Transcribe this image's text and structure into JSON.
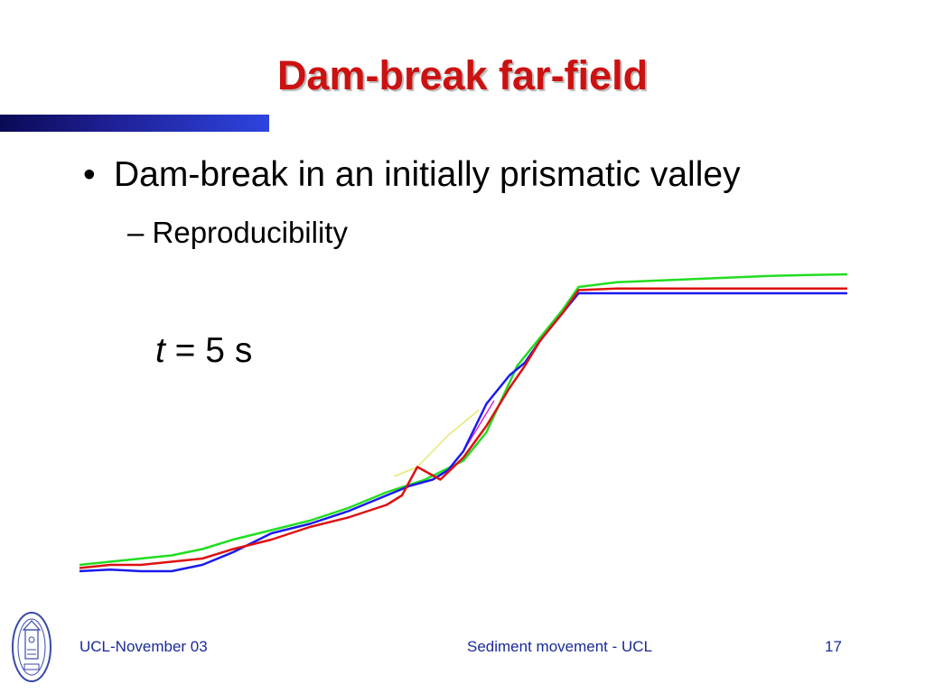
{
  "slide": {
    "title": "Dam-break far-field",
    "bullet_1": "Dam-break in an initially prismatic valley",
    "bullet_1_marker": "•",
    "bullet_2": "– Reproducibility",
    "time_label": {
      "variable": "t",
      "rest": " = 5 s"
    },
    "footer": {
      "left": "UCL-November 03",
      "center": "Sediment movement - UCL",
      "page_number": "17"
    }
  },
  "colors": {
    "title": "#cc1111",
    "footer_text": "#1a2a9a",
    "accent_bar_dark": "#0a0a55",
    "accent_bar_light": "#2e44e0",
    "series_green": "#22dd22",
    "series_red": "#dd1111",
    "series_blue": "#1a1aee",
    "series_magenta": "#dd22dd",
    "series_yellow": "#e8e870"
  },
  "icons": {
    "logo": "university-seal-icon"
  },
  "chart_data": {
    "type": "line",
    "title": "",
    "xlabel": "",
    "ylabel": "",
    "grid": false,
    "legend": "none",
    "axes_visible": false,
    "xlim": [
      0,
      100
    ],
    "ylim": [
      0,
      100
    ],
    "series": [
      {
        "color": "#22dd22",
        "x": [
          0,
          4,
          8,
          12,
          16,
          20,
          25,
          30,
          35,
          40,
          45,
          50,
          53,
          57,
          60,
          63,
          65,
          70,
          75,
          80,
          85,
          90,
          95,
          100
        ],
        "y": [
          4,
          5,
          6,
          7,
          9,
          12,
          15,
          18,
          22,
          27,
          31,
          37,
          46,
          67,
          76,
          85,
          92,
          93.5,
          94,
          94.5,
          95,
          95.5,
          95.8,
          96
        ]
      },
      {
        "color": "#dd1111",
        "x": [
          0,
          4,
          8,
          12,
          16,
          20,
          25,
          30,
          35,
          40,
          42,
          44,
          47,
          50,
          53,
          56,
          58,
          60,
          63,
          65,
          70,
          75,
          80,
          85,
          90,
          95,
          100
        ],
        "y": [
          3,
          4,
          4,
          5,
          6,
          9,
          12,
          16,
          19,
          23,
          26,
          35,
          31,
          38,
          48,
          60,
          67,
          75,
          84,
          91,
          91.5,
          91.5,
          91.5,
          91.5,
          91.5,
          91.5,
          91.5
        ]
      },
      {
        "color": "#1a1aee",
        "x": [
          0,
          4,
          8,
          12,
          16,
          20,
          25,
          30,
          35,
          40,
          43,
          46,
          48,
          50,
          53,
          56,
          58,
          60,
          63,
          65,
          70,
          75,
          80,
          85,
          90,
          95,
          100
        ],
        "y": [
          2,
          2.5,
          2,
          2,
          4,
          8,
          14,
          17,
          21,
          26,
          29,
          31,
          34,
          40,
          55,
          64,
          68,
          75,
          84,
          90,
          90,
          90,
          90,
          90,
          90,
          90,
          90
        ]
      },
      {
        "color": "#dd22dd",
        "x": [
          44,
          46,
          48,
          50,
          52,
          54
        ],
        "y": [
          30,
          31,
          34,
          40,
          48,
          56
        ]
      },
      {
        "color": "#e8e870",
        "x": [
          41,
          44,
          46,
          48,
          50,
          52
        ],
        "y": [
          32,
          35,
          40,
          45,
          49,
          53
        ]
      }
    ]
  }
}
